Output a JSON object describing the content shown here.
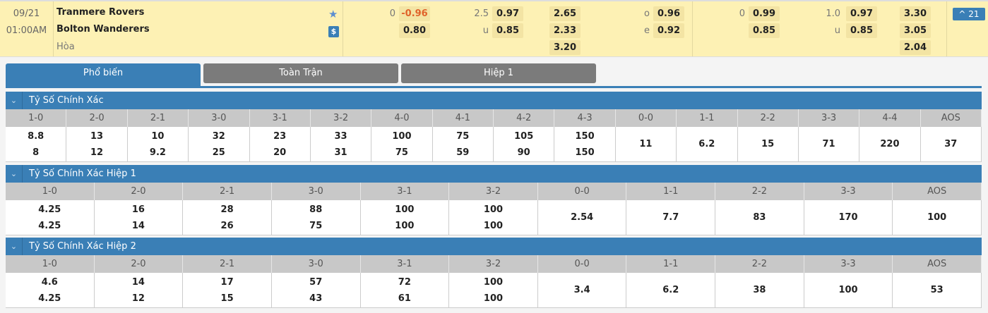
{
  "match": {
    "date": "09/21",
    "time": "01:00AM",
    "home": "Tranmere Rovers",
    "away": "Bolton Wanderers",
    "draw": "Hòa",
    "star_icon": "star-icon",
    "dollar_icon": "$",
    "more_label": "^ 21"
  },
  "odds_ft": {
    "hdp_line": "0",
    "hdp_home": "-0.96",
    "hdp_away": "0.80",
    "ou_line": "2.5",
    "ou_under_label": "u",
    "ou_over": "0.97",
    "ou_under": "0.85",
    "x12": [
      "2.65",
      "2.33",
      "3.20"
    ],
    "oe_o_label": "o",
    "oe_e_label": "e",
    "oe_o": "0.96",
    "oe_e": "0.92"
  },
  "odds_h1": {
    "hdp_line": "0",
    "hdp_home": "0.99",
    "hdp_away": "0.85",
    "ou_line": "1.0",
    "ou_under_label": "u",
    "ou_over": "0.97",
    "ou_under": "0.85",
    "x12": [
      "3.30",
      "3.05",
      "2.04"
    ]
  },
  "colors": {
    "accent": "#3a7fb6",
    "negative": "#e0622a",
    "row_bg": "#fdf1b4"
  },
  "tabs": [
    {
      "label": "Phổ biến",
      "active": true
    },
    {
      "label": "Toàn Trận"
    },
    {
      "label": "Hiệp 1"
    }
  ],
  "sections": [
    {
      "title": "Tỷ Số Chính Xác",
      "cols": [
        {
          "h": "1-0",
          "v": [
            "8.8",
            "8"
          ]
        },
        {
          "h": "2-0",
          "v": [
            "13",
            "12"
          ]
        },
        {
          "h": "2-1",
          "v": [
            "10",
            "9.2"
          ]
        },
        {
          "h": "3-0",
          "v": [
            "32",
            "25"
          ]
        },
        {
          "h": "3-1",
          "v": [
            "23",
            "20"
          ]
        },
        {
          "h": "3-2",
          "v": [
            "33",
            "31"
          ]
        },
        {
          "h": "4-0",
          "v": [
            "100",
            "75"
          ]
        },
        {
          "h": "4-1",
          "v": [
            "75",
            "59"
          ]
        },
        {
          "h": "4-2",
          "v": [
            "105",
            "90"
          ]
        },
        {
          "h": "4-3",
          "v": [
            "150",
            "150"
          ]
        },
        {
          "h": "0-0",
          "v": [
            "11"
          ]
        },
        {
          "h": "1-1",
          "v": [
            "6.2"
          ]
        },
        {
          "h": "2-2",
          "v": [
            "15"
          ]
        },
        {
          "h": "3-3",
          "v": [
            "71"
          ]
        },
        {
          "h": "4-4",
          "v": [
            "220"
          ]
        },
        {
          "h": "AOS",
          "v": [
            "37"
          ]
        }
      ]
    },
    {
      "title": "Tỷ Số Chính Xác Hiệp 1",
      "cols": [
        {
          "h": "1-0",
          "v": [
            "4.25",
            "4.25"
          ]
        },
        {
          "h": "2-0",
          "v": [
            "16",
            "14"
          ]
        },
        {
          "h": "2-1",
          "v": [
            "28",
            "26"
          ]
        },
        {
          "h": "3-0",
          "v": [
            "88",
            "75"
          ]
        },
        {
          "h": "3-1",
          "v": [
            "100",
            "100"
          ]
        },
        {
          "h": "3-2",
          "v": [
            "100",
            "100"
          ]
        },
        {
          "h": "0-0",
          "v": [
            "2.54"
          ]
        },
        {
          "h": "1-1",
          "v": [
            "7.7"
          ]
        },
        {
          "h": "2-2",
          "v": [
            "83"
          ]
        },
        {
          "h": "3-3",
          "v": [
            "170"
          ]
        },
        {
          "h": "AOS",
          "v": [
            "100"
          ]
        }
      ]
    },
    {
      "title": "Tỷ Số Chính Xác Hiệp 2",
      "cols": [
        {
          "h": "1-0",
          "v": [
            "4.6",
            "4.25"
          ]
        },
        {
          "h": "2-0",
          "v": [
            "14",
            "12"
          ]
        },
        {
          "h": "2-1",
          "v": [
            "17",
            "15"
          ]
        },
        {
          "h": "3-0",
          "v": [
            "57",
            "43"
          ]
        },
        {
          "h": "3-1",
          "v": [
            "72",
            "61"
          ]
        },
        {
          "h": "3-2",
          "v": [
            "100",
            "100"
          ]
        },
        {
          "h": "0-0",
          "v": [
            "3.4"
          ]
        },
        {
          "h": "1-1",
          "v": [
            "6.2"
          ]
        },
        {
          "h": "2-2",
          "v": [
            "38"
          ]
        },
        {
          "h": "3-3",
          "v": [
            "100"
          ]
        },
        {
          "h": "AOS",
          "v": [
            "53"
          ]
        }
      ]
    }
  ]
}
